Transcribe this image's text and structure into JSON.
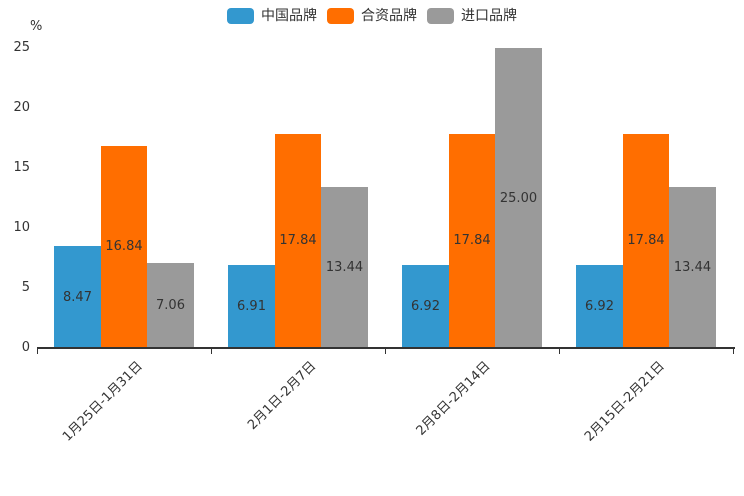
{
  "chart_data": {
    "type": "bar",
    "title": "",
    "unit_label": "%",
    "categories": [
      "1月25日-1月31日",
      "2月1日-2月7日",
      "2月8日-2月14日",
      "2月15日-2月21日"
    ],
    "series": [
      {
        "name": "中国品牌",
        "color": "#3398cf",
        "values": [
          8.47,
          6.91,
          6.92,
          6.92
        ],
        "labels": [
          "8.47",
          "6.91",
          "6.92",
          "6.92"
        ]
      },
      {
        "name": "合资品牌",
        "color": "#ff6e00",
        "values": [
          16.84,
          17.84,
          17.84,
          17.84
        ],
        "labels": [
          "16.84",
          "17.84",
          "17.84",
          "17.84"
        ]
      },
      {
        "name": "进口品牌",
        "color": "#9a9a9a",
        "values": [
          7.06,
          13.44,
          25.0,
          13.44
        ],
        "labels": [
          "7.06",
          "13.44",
          "25.00",
          "13.44"
        ]
      }
    ],
    "ylim": [
      0,
      25
    ],
    "yticks": [
      0,
      5,
      10,
      15,
      20,
      25
    ],
    "legend_position": "top",
    "grid_lines": false,
    "text_color": "#333333",
    "axis_color": "#333333"
  }
}
